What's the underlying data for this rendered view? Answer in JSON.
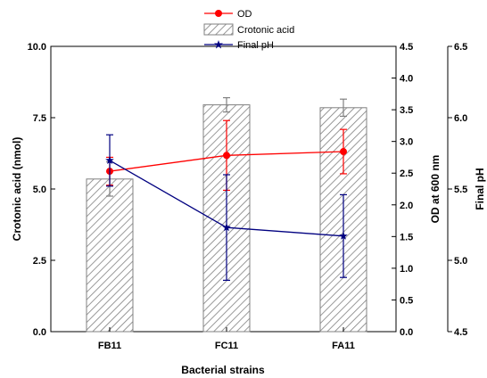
{
  "chart_data": {
    "type": "bar+line",
    "xlabel": "Bacterial strains",
    "categories": [
      "FB11",
      "FC11",
      "FA11"
    ],
    "grid": false,
    "legend_placement": "top-center",
    "axes": [
      {
        "id": "crotonic",
        "label": "Crotonic acid (nmol)",
        "side": "left",
        "range": [
          0,
          10
        ],
        "ticks": [
          "0.0",
          "2.5",
          "5.0",
          "7.5",
          "10.0"
        ]
      },
      {
        "id": "od",
        "label": "OD at 600 nm",
        "side": "right",
        "range": [
          0,
          4.5
        ],
        "ticks": [
          "0.0",
          "0.5",
          "1.0",
          "1.5",
          "2.0",
          "2.5",
          "3.0",
          "3.5",
          "4.0",
          "4.5"
        ]
      },
      {
        "id": "ph",
        "label": "Final pH",
        "side": "right-offset",
        "range": [
          4.5,
          6.5
        ],
        "ticks": [
          "4.5",
          "5.0",
          "5.5",
          "6.0",
          "6.5"
        ]
      }
    ],
    "series": [
      {
        "name": "OD",
        "type": "line",
        "axis": "od",
        "color": "#ff0000",
        "marker": "circle",
        "values": [
          2.53,
          2.78,
          2.84
        ],
        "err": [
          0.22,
          0.55,
          0.35
        ]
      },
      {
        "name": "Crotonic acid",
        "type": "bar",
        "axis": "crotonic",
        "color": "#808080",
        "pattern": "diagonal-hatch",
        "values": [
          5.35,
          7.95,
          7.85
        ],
        "err": [
          0.6,
          0.25,
          0.3
        ]
      },
      {
        "name": "Final pH",
        "type": "line",
        "axis": "ph",
        "color": "#000080",
        "marker": "star",
        "values": [
          5.7,
          5.23,
          5.17
        ],
        "err": [
          0.18,
          0.37,
          0.29
        ]
      }
    ]
  }
}
